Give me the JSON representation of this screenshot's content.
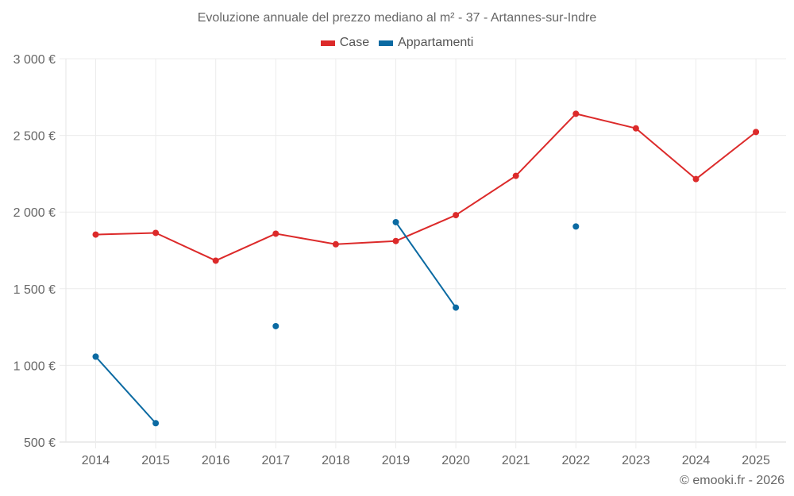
{
  "chart_data": {
    "type": "line",
    "title": "Evoluzione annuale del prezzo mediano al m² - 37 - Artannes-sur-Indre",
    "xlabel": "",
    "ylabel": "",
    "x": [
      "2014",
      "2015",
      "2016",
      "2017",
      "2018",
      "2019",
      "2020",
      "2021",
      "2022",
      "2023",
      "2024",
      "2025"
    ],
    "ylim": [
      500,
      3000
    ],
    "yticks": [
      500,
      1000,
      1500,
      2000,
      2500,
      3000
    ],
    "ytick_labels": [
      "500 €",
      "1 000 €",
      "1 500 €",
      "2 000 €",
      "2 500 €",
      "3 000 €"
    ],
    "grid": true,
    "legend_position": "top-center",
    "series": [
      {
        "name": "Case",
        "color": "#dc2a2a",
        "values": [
          1853,
          1864,
          1683,
          1859,
          1790,
          1811,
          1980,
          2236,
          2641,
          2546,
          2215,
          2522
        ]
      },
      {
        "name": "Appartamenti",
        "color": "#0b6aa2",
        "values": [
          1057,
          623,
          null,
          1256,
          null,
          1934,
          1377,
          null,
          1906,
          null,
          null,
          null
        ]
      }
    ]
  },
  "footer": {
    "copyright": "© emooki.fr - 2026"
  }
}
